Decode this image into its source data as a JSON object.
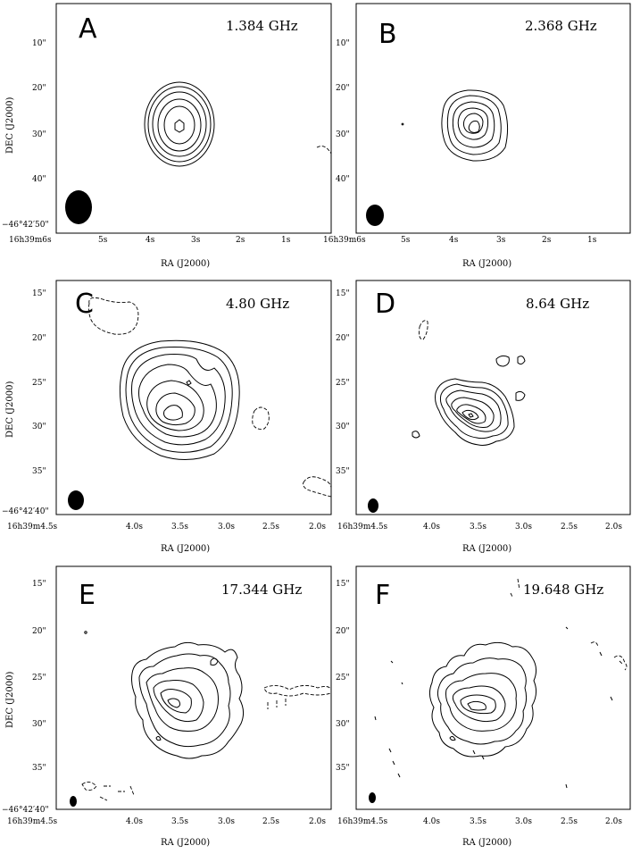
{
  "panels": [
    {
      "letter": "A",
      "frequency": "1.384 GHz",
      "y_ticks": [
        "10\"",
        "20\"",
        "30\"",
        "40\"",
        "−46°42′50\""
      ],
      "x_ticks": [
        "16h39m6s",
        "5s",
        "4s",
        "3s",
        "2s",
        "1s"
      ],
      "xlabel": "RA (J2000)",
      "ylabel": "DEC (J2000)"
    },
    {
      "letter": "B",
      "frequency": "2.368 GHz",
      "y_ticks": [
        "10\"",
        "20\"",
        "30\"",
        "40\""
      ],
      "x_ticks": [
        "16h39m6s",
        "5s",
        "4s",
        "3s",
        "2s",
        "1s"
      ],
      "xlabel": "RA (J2000)",
      "ylabel": ""
    },
    {
      "letter": "C",
      "frequency": "4.80 GHz",
      "y_ticks": [
        "15\"",
        "20\"",
        "25\"",
        "30\"",
        "35\"",
        "−46°42′40\""
      ],
      "x_ticks": [
        "16h39m4.5s",
        "4.0s",
        "3.5s",
        "3.0s",
        "2.5s",
        "2.0s"
      ],
      "xlabel": "RA (J2000)",
      "ylabel": "DEC (J2000)"
    },
    {
      "letter": "D",
      "frequency": "8.64 GHz",
      "y_ticks": [
        "15\"",
        "20\"",
        "25\"",
        "30\"",
        "35\""
      ],
      "x_ticks": [
        "16h39m4.5s",
        "4.0s",
        "3.5s",
        "3.0s",
        "2.5s",
        "2.0s"
      ],
      "xlabel": "RA (J2000)",
      "ylabel": ""
    },
    {
      "letter": "E",
      "frequency": "17.344 GHz",
      "y_ticks": [
        "15\"",
        "20\"",
        "25\"",
        "30\"",
        "35\"",
        "−46°42′40\""
      ],
      "x_ticks": [
        "16h39m4.5s",
        "4.0s",
        "3.5s",
        "3.0s",
        "2.5s",
        "2.0s"
      ],
      "xlabel": "RA (J2000)",
      "ylabel": "DEC (J2000)"
    },
    {
      "letter": "F",
      "frequency": "19.648 GHz",
      "y_ticks": [
        "15\"",
        "20\"",
        "25\"",
        "30\"",
        "35\""
      ],
      "x_ticks": [
        "16h39m4.5s",
        "4.0s",
        "3.5s",
        "3.0s",
        "2.5s",
        "2.0s"
      ],
      "xlabel": "RA (J2000)",
      "ylabel": ""
    }
  ]
}
